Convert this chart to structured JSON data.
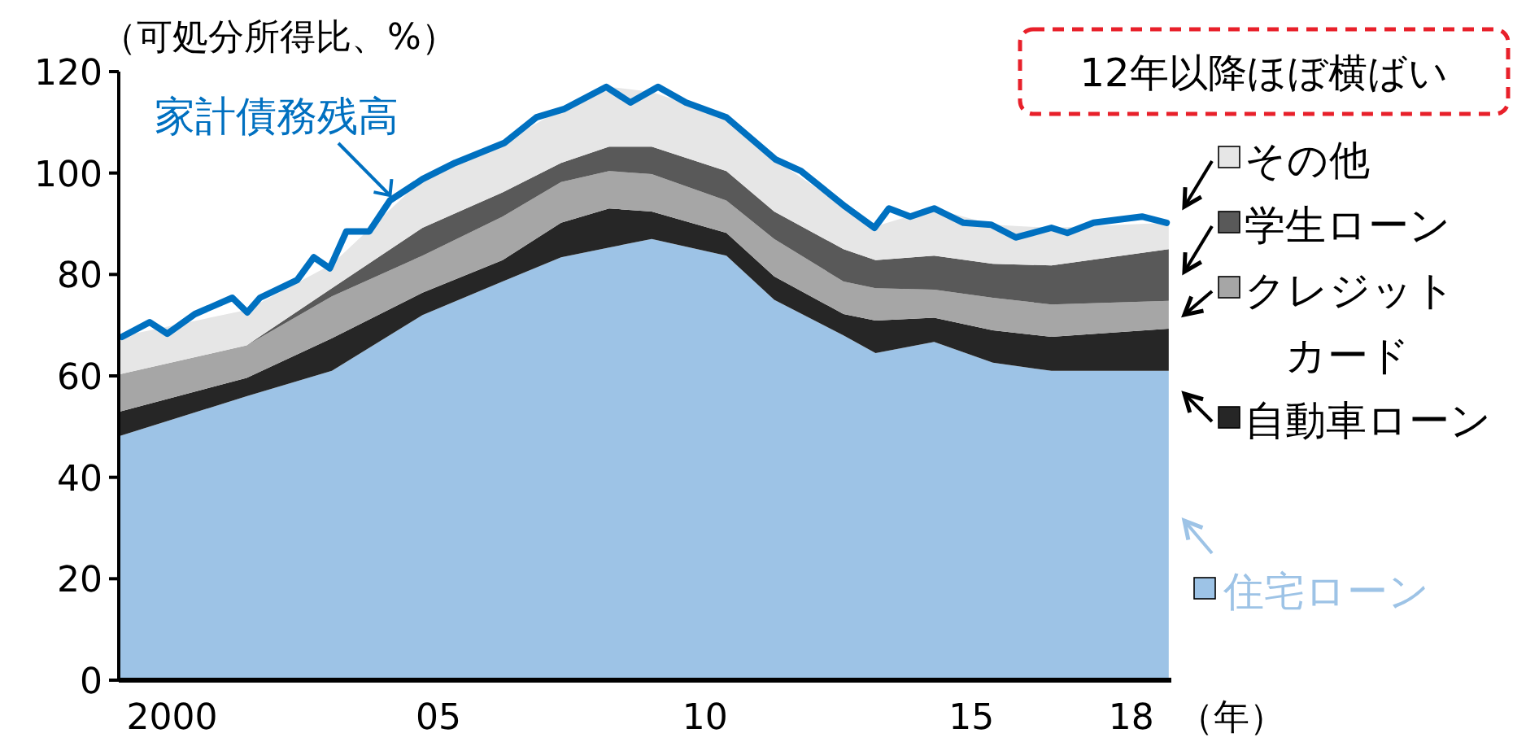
{
  "chart_data": {
    "type": "area",
    "stacked": true,
    "ylabel": "（可処分所得比、%）",
    "xlabel": "（年）",
    "xlim": [
      1999,
      2018.75
    ],
    "ylim": [
      0,
      120
    ],
    "xticks": [
      {
        "value": 2000,
        "label": "2000"
      },
      {
        "value": 2005,
        "label": "05"
      },
      {
        "value": 2010,
        "label": "10"
      },
      {
        "value": 2015,
        "label": "15"
      },
      {
        "value": 2018,
        "label": "18"
      }
    ],
    "yticks": [
      0,
      20,
      40,
      60,
      80,
      100,
      120
    ],
    "x": [
      1999,
      2001.4,
      2003,
      2004.7,
      2006.2,
      2007.3,
      2008.2,
      2009,
      2010.4,
      2011.3,
      2012.6,
      2013.2,
      2014.3,
      2015.4,
      2016.5,
      2018.7
    ],
    "series": [
      {
        "name": "住宅ローン",
        "color": "#9dc3e6",
        "values": [
          48.1,
          56,
          61,
          72,
          78.6,
          83.4,
          85.3,
          87,
          83.7,
          75,
          68,
          64.5,
          66.7,
          62.6,
          61,
          61
        ]
      },
      {
        "name": "自動車ローン",
        "color": "#262626",
        "values": [
          4.8,
          3.6,
          6.4,
          4.4,
          4.2,
          6.8,
          7.7,
          5.4,
          4.5,
          4.6,
          4.2,
          6.4,
          4.8,
          6.4,
          6.7,
          8.3
        ]
      },
      {
        "name": "クレジットカード",
        "color": "#a6a6a6",
        "values": [
          7.4,
          6.4,
          8.3,
          7.3,
          8.6,
          8,
          7.4,
          7.4,
          6.4,
          7.4,
          6.4,
          6.4,
          5.5,
          6.4,
          6.4,
          5.5
        ]
      },
      {
        "name": "学生ローン",
        "color": "#595959",
        "values": [
          0,
          0,
          1.6,
          5.5,
          4.8,
          3.8,
          4.8,
          5.4,
          5.8,
          5.4,
          6.4,
          5.5,
          6.7,
          6.7,
          7.7,
          10.2
        ]
      },
      {
        "name": "その他",
        "color": "#e6e6e6",
        "values": [
          7.4,
          7,
          4.7,
          9.6,
          9.7,
          10.6,
          11.8,
          10.8,
          10.6,
          10.3,
          8.4,
          6.7,
          9.3,
          7.7,
          7.4,
          5.2
        ]
      },
      {
        "name": "家計債務残高",
        "type": "line",
        "color": "#0070c0",
        "x": [
          1999.06,
          1999.58,
          1999.91,
          2000.43,
          2001.13,
          2001.41,
          2001.65,
          2002.35,
          2002.66,
          2002.96,
          2003.27,
          2003.7,
          2004.09,
          2004.7,
          2005.31,
          2006.23,
          2006.84,
          2007.35,
          2008.15,
          2008.6,
          2009.12,
          2009.64,
          2010.4,
          2011.32,
          2011.8,
          2012.63,
          2013.18,
          2013.45,
          2013.85,
          2014.3,
          2014.85,
          2015.37,
          2015.83,
          2016.5,
          2016.8,
          2017.29,
          2018.2,
          2018.66
        ],
        "values": [
          67.7,
          70.6,
          68.3,
          72.2,
          75.4,
          72.5,
          75.4,
          78.9,
          83.4,
          81.2,
          88.5,
          88.5,
          94.6,
          98.8,
          102,
          105.9,
          111,
          112.6,
          117,
          113.9,
          117,
          113.9,
          111,
          102.7,
          100.4,
          93.4,
          89.2,
          93,
          91.4,
          93,
          90.2,
          89.8,
          87.3,
          89.2,
          88.2,
          90.2,
          91.4,
          90.2
        ]
      }
    ],
    "legend": "right",
    "annotations": [
      "12年以降ほぼ横ばい"
    ]
  }
}
